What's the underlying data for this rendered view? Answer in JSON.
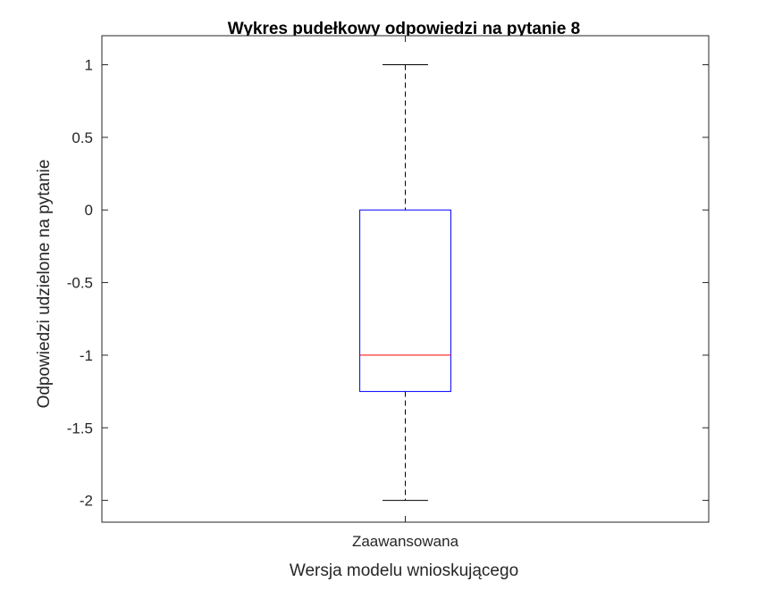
{
  "chart_data": {
    "type": "box",
    "title": "Wykres pudełkowy odpowiedzi na pytanie 8",
    "xlabel": "Wersja modelu wnioskującego",
    "ylabel": "Odpowiedzi udzielone na pytanie",
    "ylim": [
      -2.15,
      1.2
    ],
    "yticks": [
      1,
      0.5,
      0,
      -0.5,
      -1,
      -1.5,
      -2
    ],
    "ytick_labels": [
      "1",
      "0.5",
      "0",
      "-0.5",
      "-1",
      "-1.5",
      "-2"
    ],
    "categories": [
      "Zaawansowana"
    ],
    "boxes": [
      {
        "category": "Zaawansowana",
        "whisker_low": -2,
        "q1": -1.25,
        "median": -1,
        "q3": 0,
        "whisker_high": 1
      }
    ],
    "grid": false,
    "colors": {
      "box": "#0000ff",
      "median": "#ff0000",
      "whisker": "#000000",
      "axes": "#262626"
    }
  }
}
